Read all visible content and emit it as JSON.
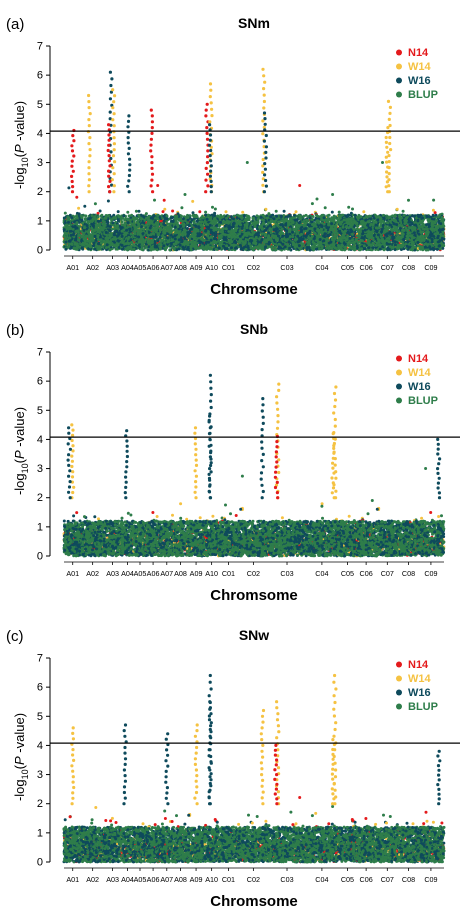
{
  "colors": {
    "N14": "#e41a1c",
    "W14": "#f5c242",
    "W16": "#0e4a5c",
    "BLUP": "#2e7d4a",
    "threshold": "#000000"
  },
  "chart_data": [
    {
      "type": "scatter",
      "panel_label": "(a)",
      "title": "SNm",
      "xlabel": "Chromsome",
      "ylabel_parts": [
        "-log",
        "10",
        "(",
        "P",
        " -value)"
      ],
      "ylim": [
        0,
        7
      ],
      "yticks": [
        0,
        1,
        2,
        3,
        4,
        5,
        6,
        7
      ],
      "threshold": 4.08,
      "legend_position": "top-right",
      "legend": [
        "N14",
        "W14",
        "W16",
        "BLUP"
      ],
      "chromosomes": [
        "A01",
        "A02",
        "A03",
        "A04",
        "A05",
        "A06",
        "A07",
        "A08",
        "A09",
        "A10",
        "C01",
        "C02",
        "C03",
        "C04",
        "C05",
        "C06",
        "C07",
        "C08",
        "C09"
      ],
      "peaks": [
        {
          "chrom": "A01",
          "pos": 0.5,
          "value": 4.1,
          "series": "N14"
        },
        {
          "chrom": "A02",
          "pos": 0.35,
          "value": 5.3,
          "series": "W14"
        },
        {
          "chrom": "A03",
          "pos": 0.4,
          "value": 6.1,
          "series": "W16"
        },
        {
          "chrom": "A03",
          "pos": 0.55,
          "value": 5.5,
          "series": "W14"
        },
        {
          "chrom": "A03",
          "pos": 0.3,
          "value": 4.3,
          "series": "N14"
        },
        {
          "chrom": "A04",
          "pos": 0.6,
          "value": 4.6,
          "series": "W16"
        },
        {
          "chrom": "A06",
          "pos": 0.4,
          "value": 4.8,
          "series": "N14"
        },
        {
          "chrom": "A10",
          "pos": 0.15,
          "value": 5.0,
          "series": "N14"
        },
        {
          "chrom": "A10",
          "pos": 0.45,
          "value": 5.7,
          "series": "W14"
        },
        {
          "chrom": "A10",
          "pos": 0.4,
          "value": 4.3,
          "series": "W16"
        },
        {
          "chrom": "C02",
          "pos": 0.85,
          "value": 6.2,
          "series": "W14"
        },
        {
          "chrom": "C02",
          "pos": 0.9,
          "value": 4.7,
          "series": "W16"
        },
        {
          "chrom": "C07",
          "pos": 0.6,
          "value": 5.1,
          "series": "W14"
        },
        {
          "chrom": "C07",
          "pos": 0.5,
          "value": 4.2,
          "series": "W14"
        }
      ]
    },
    {
      "type": "scatter",
      "panel_label": "(b)",
      "title": "SNb",
      "xlabel": "Chromsome",
      "ylabel_parts": [
        "-log",
        "10",
        "(",
        "P",
        " -value)"
      ],
      "ylim": [
        0,
        7
      ],
      "yticks": [
        0,
        1,
        2,
        3,
        4,
        5,
        6,
        7
      ],
      "threshold": 4.08,
      "legend_position": "top-right",
      "legend": [
        "N14",
        "W14",
        "W16",
        "BLUP"
      ],
      "chromosomes": [
        "A01",
        "A02",
        "A03",
        "A04",
        "A05",
        "A06",
        "A07",
        "A08",
        "A09",
        "A10",
        "C01",
        "C02",
        "C03",
        "C04",
        "C05",
        "C06",
        "C07",
        "C08",
        "C09"
      ],
      "peaks": [
        {
          "chrom": "A01",
          "pos": 0.5,
          "value": 4.5,
          "series": "W14"
        },
        {
          "chrom": "A01",
          "pos": 0.3,
          "value": 4.4,
          "series": "W16"
        },
        {
          "chrom": "A04",
          "pos": 0.4,
          "value": 4.3,
          "series": "W16"
        },
        {
          "chrom": "A09",
          "pos": 0.5,
          "value": 4.4,
          "series": "W14"
        },
        {
          "chrom": "A10",
          "pos": 0.4,
          "value": 6.2,
          "series": "W16"
        },
        {
          "chrom": "A10",
          "pos": 0.4,
          "value": 4.8,
          "series": "W16"
        },
        {
          "chrom": "C02",
          "pos": 0.8,
          "value": 5.4,
          "series": "W16"
        },
        {
          "chrom": "C03",
          "pos": 0.25,
          "value": 5.9,
          "series": "W14"
        },
        {
          "chrom": "C03",
          "pos": 0.22,
          "value": 4.1,
          "series": "N14"
        },
        {
          "chrom": "C04",
          "pos": 0.9,
          "value": 5.8,
          "series": "W14"
        },
        {
          "chrom": "C04",
          "pos": 0.85,
          "value": 4.2,
          "series": "W14"
        },
        {
          "chrom": "C09",
          "pos": 0.8,
          "value": 4.0,
          "series": "W16"
        }
      ]
    },
    {
      "type": "scatter",
      "panel_label": "(c)",
      "title": "SNw",
      "xlabel": "Chromsome",
      "ylabel_parts": [
        "-log",
        "10",
        "(",
        "P",
        " -value)"
      ],
      "ylim": [
        0,
        7
      ],
      "yticks": [
        0,
        1,
        2,
        3,
        4,
        5,
        6,
        7
      ],
      "threshold": 4.08,
      "legend_position": "top-right",
      "legend": [
        "N14",
        "W14",
        "W16",
        "BLUP"
      ],
      "chromosomes": [
        "A01",
        "A02",
        "A03",
        "A04",
        "A05",
        "A06",
        "A07",
        "A08",
        "A09",
        "A10",
        "C01",
        "C02",
        "C03",
        "C04",
        "C05",
        "C06",
        "C07",
        "C08",
        "C09"
      ],
      "peaks": [
        {
          "chrom": "A01",
          "pos": 0.5,
          "value": 4.6,
          "series": "W14"
        },
        {
          "chrom": "A04",
          "pos": 0.3,
          "value": 4.7,
          "series": "W16"
        },
        {
          "chrom": "A07",
          "pos": 0.5,
          "value": 4.4,
          "series": "W16"
        },
        {
          "chrom": "A09",
          "pos": 0.5,
          "value": 4.7,
          "series": "W14"
        },
        {
          "chrom": "A10",
          "pos": 0.4,
          "value": 6.4,
          "series": "W16"
        },
        {
          "chrom": "A10",
          "pos": 0.4,
          "value": 5.5,
          "series": "W16"
        },
        {
          "chrom": "C02",
          "pos": 0.8,
          "value": 5.2,
          "series": "W14"
        },
        {
          "chrom": "C03",
          "pos": 0.25,
          "value": 5.5,
          "series": "W14"
        },
        {
          "chrom": "C03",
          "pos": 0.2,
          "value": 4.0,
          "series": "N14"
        },
        {
          "chrom": "C04",
          "pos": 0.9,
          "value": 6.4,
          "series": "W14"
        },
        {
          "chrom": "C04",
          "pos": 0.85,
          "value": 4.2,
          "series": "W14"
        },
        {
          "chrom": "C09",
          "pos": 0.8,
          "value": 3.8,
          "series": "W16"
        }
      ]
    }
  ]
}
